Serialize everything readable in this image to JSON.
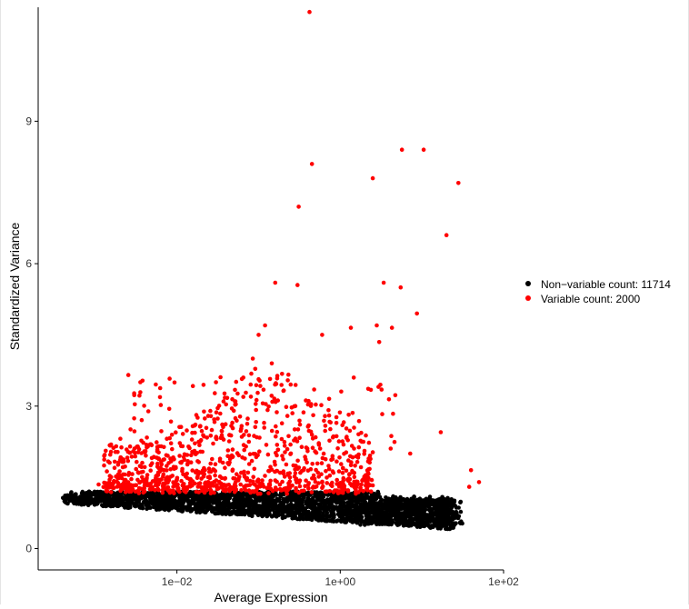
{
  "chart_data": {
    "type": "scatter",
    "title": "",
    "xlabel": "Average Expression",
    "ylabel": "Standardized Variance",
    "x_scale": "log10",
    "xlim": [
      0.0002,
      100
    ],
    "ylim": [
      -0.45,
      11.4
    ],
    "x_ticks": [
      {
        "value": 0.01,
        "label": "1e−02"
      },
      {
        "value": 1,
        "label": "1e+00"
      },
      {
        "value": 100,
        "label": "1e+02"
      }
    ],
    "y_ticks": [
      {
        "value": 0,
        "label": "0"
      },
      {
        "value": 3,
        "label": "3"
      },
      {
        "value": 6,
        "label": "6"
      },
      {
        "value": 9,
        "label": "9"
      }
    ],
    "grid": false,
    "legend_position": "right",
    "series": [
      {
        "name": "Non−variable count: 11714",
        "color": "#000000",
        "cloud": {
          "description": "dense black band",
          "x_range": [
            0.0005,
            30
          ],
          "y_lower_trend": "decreasing from 0.95 to 0.4 with log x",
          "y_range": [
            0.35,
            1.2
          ]
        },
        "points": [
          {
            "x": 0.00042,
            "y": 1.0
          },
          {
            "x": 0.00071,
            "y": 1.0
          },
          {
            "x": 0.001,
            "y": 0.98
          },
          {
            "x": 0.0013,
            "y": 0.98
          },
          {
            "x": 0.002,
            "y": 0.97
          },
          {
            "x": 0.0026,
            "y": 0.97
          }
        ]
      },
      {
        "name": "Variable count: 2000",
        "color": "#ff0000",
        "cloud": {
          "description": "red points above the black band",
          "x_range": [
            0.0012,
            50
          ],
          "y_range": [
            1.2,
            3.7
          ]
        },
        "points": [
          {
            "x": 0.42,
            "y": 11.3
          },
          {
            "x": 0.45,
            "y": 8.1
          },
          {
            "x": 2.5,
            "y": 7.8
          },
          {
            "x": 5.7,
            "y": 8.4
          },
          {
            "x": 10.5,
            "y": 8.4
          },
          {
            "x": 28,
            "y": 7.7
          },
          {
            "x": 0.31,
            "y": 7.2
          },
          {
            "x": 20,
            "y": 6.6
          },
          {
            "x": 0.16,
            "y": 5.6
          },
          {
            "x": 0.3,
            "y": 5.55
          },
          {
            "x": 3.4,
            "y": 5.6
          },
          {
            "x": 5.5,
            "y": 5.5
          },
          {
            "x": 8.7,
            "y": 4.95
          },
          {
            "x": 0.12,
            "y": 4.7
          },
          {
            "x": 1.35,
            "y": 4.65
          },
          {
            "x": 2.8,
            "y": 4.7
          },
          {
            "x": 0.6,
            "y": 4.5
          },
          {
            "x": 4.3,
            "y": 4.65
          },
          {
            "x": 0.1,
            "y": 4.5
          },
          {
            "x": 3.0,
            "y": 4.35
          },
          {
            "x": 0.145,
            "y": 3.9
          },
          {
            "x": 0.085,
            "y": 4.0
          },
          {
            "x": 0.065,
            "y": 3.6
          },
          {
            "x": 3.1,
            "y": 3.45
          },
          {
            "x": 17,
            "y": 2.45
          },
          {
            "x": 7.2,
            "y": 2.0
          },
          {
            "x": 40,
            "y": 1.65
          },
          {
            "x": 50,
            "y": 1.4
          },
          {
            "x": 38,
            "y": 1.3
          },
          {
            "x": 0.0011,
            "y": 1.35
          },
          {
            "x": 0.0015,
            "y": 1.45
          },
          {
            "x": 0.0033,
            "y": 2.15
          },
          {
            "x": 0.0044,
            "y": 2.15
          }
        ]
      }
    ]
  }
}
